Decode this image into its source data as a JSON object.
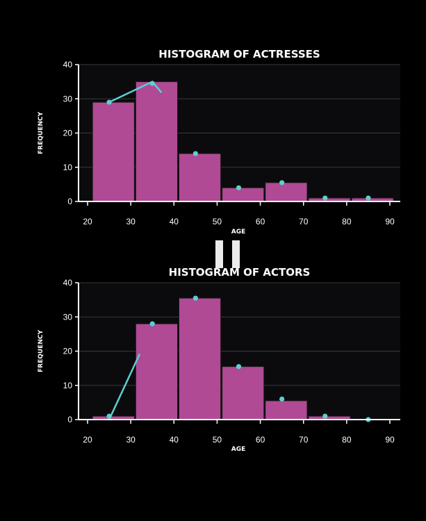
{
  "colors": {
    "background": "#000000",
    "plot_background": "#0b0b0d",
    "bar_fill": "#b04a94",
    "bar_stroke": "#1a1a1a",
    "trend": "#5ccfd0",
    "grid": "#3a3a3a",
    "axis": "#ffffff",
    "pause_icon": "#ffffff"
  },
  "pause_icon": "pause-icon",
  "chart_data": [
    {
      "type": "bar",
      "title": "HISTOGRAM OF ACTRESSES",
      "xlabel": "AGE",
      "ylabel": "FREQUENCY",
      "xlim": [
        20,
        90
      ],
      "ylim": [
        0,
        40
      ],
      "xticks": [
        "20",
        "30",
        "40",
        "50",
        "60",
        "70",
        "80",
        "90"
      ],
      "yticks": [
        "0",
        "10",
        "20",
        "30",
        "40"
      ],
      "grid": true,
      "bins": [
        [
          21,
          31
        ],
        [
          31,
          41
        ],
        [
          41,
          51
        ],
        [
          51,
          61
        ],
        [
          61,
          71
        ],
        [
          71,
          81
        ],
        [
          81,
          91
        ]
      ],
      "values": [
        29,
        35,
        14,
        4,
        5.5,
        1,
        1
      ],
      "points": [
        [
          25,
          29
        ],
        [
          35,
          34.5
        ],
        [
          45,
          14
        ],
        [
          55,
          4
        ],
        [
          65,
          5.5
        ],
        [
          75,
          1
        ],
        [
          85,
          1
        ]
      ],
      "trend_line": [
        [
          25,
          29
        ],
        [
          35,
          35
        ],
        [
          37,
          32
        ]
      ]
    },
    {
      "type": "bar",
      "title": "HISTOGRAM OF ACTORS",
      "xlabel": "AGE",
      "ylabel": "FREQUENCY",
      "xlim": [
        20,
        90
      ],
      "ylim": [
        0,
        40
      ],
      "xticks": [
        "20",
        "30",
        "40",
        "50",
        "60",
        "70",
        "80",
        "90"
      ],
      "yticks": [
        "0",
        "10",
        "20",
        "30",
        "40"
      ],
      "grid": true,
      "bins": [
        [
          21,
          31
        ],
        [
          31,
          41
        ],
        [
          41,
          51
        ],
        [
          51,
          61
        ],
        [
          61,
          71
        ],
        [
          71,
          81
        ],
        [
          81,
          91
        ]
      ],
      "values": [
        1,
        28,
        35.5,
        15.5,
        5.5,
        1,
        0
      ],
      "points": [
        [
          25,
          1
        ],
        [
          35,
          28
        ],
        [
          45,
          35.5
        ],
        [
          55,
          15.5
        ],
        [
          65,
          6
        ],
        [
          75,
          1
        ],
        [
          85,
          0
        ]
      ],
      "trend_line": [
        [
          25,
          0
        ],
        [
          32,
          19
        ]
      ]
    }
  ]
}
